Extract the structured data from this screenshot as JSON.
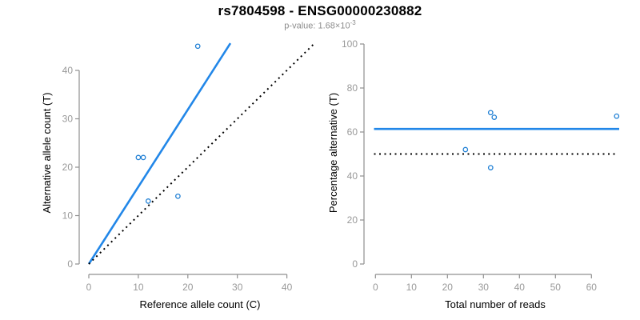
{
  "page": {
    "title": "rs7804598 - ENSG00000230882",
    "subtitle": {
      "prefix": "p-value: 1.68×10",
      "exponent": "-3"
    }
  },
  "colors": {
    "fit_line": "#2287E8",
    "point": "#1F7FD4",
    "identity_line": "#000000",
    "axis": "#909090",
    "tick_label": "#999999",
    "axis_title": "#000000",
    "subtitle": "#8C8C8C"
  },
  "chart_data": [
    {
      "type": "scatter",
      "panel": "left",
      "xlabel": "Reference allele count (C)",
      "ylabel": "Alternative allele count (T)",
      "xticks": [
        0,
        10,
        20,
        30,
        40
      ],
      "yticks": [
        0,
        10,
        20,
        30,
        40
      ],
      "xlim": [
        0,
        45
      ],
      "ylim": [
        0,
        46
      ],
      "points": [
        [
          10,
          22
        ],
        [
          11,
          22
        ],
        [
          12,
          13
        ],
        [
          18,
          14
        ],
        [
          22,
          45
        ]
      ],
      "lines": [
        {
          "name": "fitted-ratio-line",
          "style": "solid",
          "color_key": "fit_line",
          "x1": 0,
          "y1": 0,
          "x2": 28.6,
          "y2": 45.6
        },
        {
          "name": "identity-line",
          "style": "dotted",
          "color_key": "identity_line",
          "x1": 0,
          "y1": 0,
          "x2": 45.4,
          "y2": 45.4
        }
      ]
    },
    {
      "type": "scatter",
      "panel": "right",
      "xlabel": "Total number of reads",
      "ylabel": "Percentage alternative (T)",
      "xticks": [
        0,
        10,
        20,
        30,
        40,
        50,
        60
      ],
      "yticks": [
        0,
        20,
        40,
        60,
        80,
        100
      ],
      "xlim": [
        0,
        68
      ],
      "ylim": [
        0,
        100
      ],
      "points": [
        [
          25,
          52
        ],
        [
          32,
          68.8
        ],
        [
          33,
          66.7
        ],
        [
          32,
          43.8
        ],
        [
          67,
          67.2
        ]
      ],
      "lines": [
        {
          "name": "fitted-percentage-line",
          "style": "solid",
          "color_key": "fit_line",
          "x1": -0.4,
          "y1": 61.4,
          "x2": 67.7,
          "y2": 61.4
        },
        {
          "name": "null-50-percent-line",
          "style": "dotted",
          "color_key": "identity_line",
          "x1": -0.4,
          "y1": 50,
          "x2": 67,
          "y2": 50
        }
      ]
    }
  ]
}
